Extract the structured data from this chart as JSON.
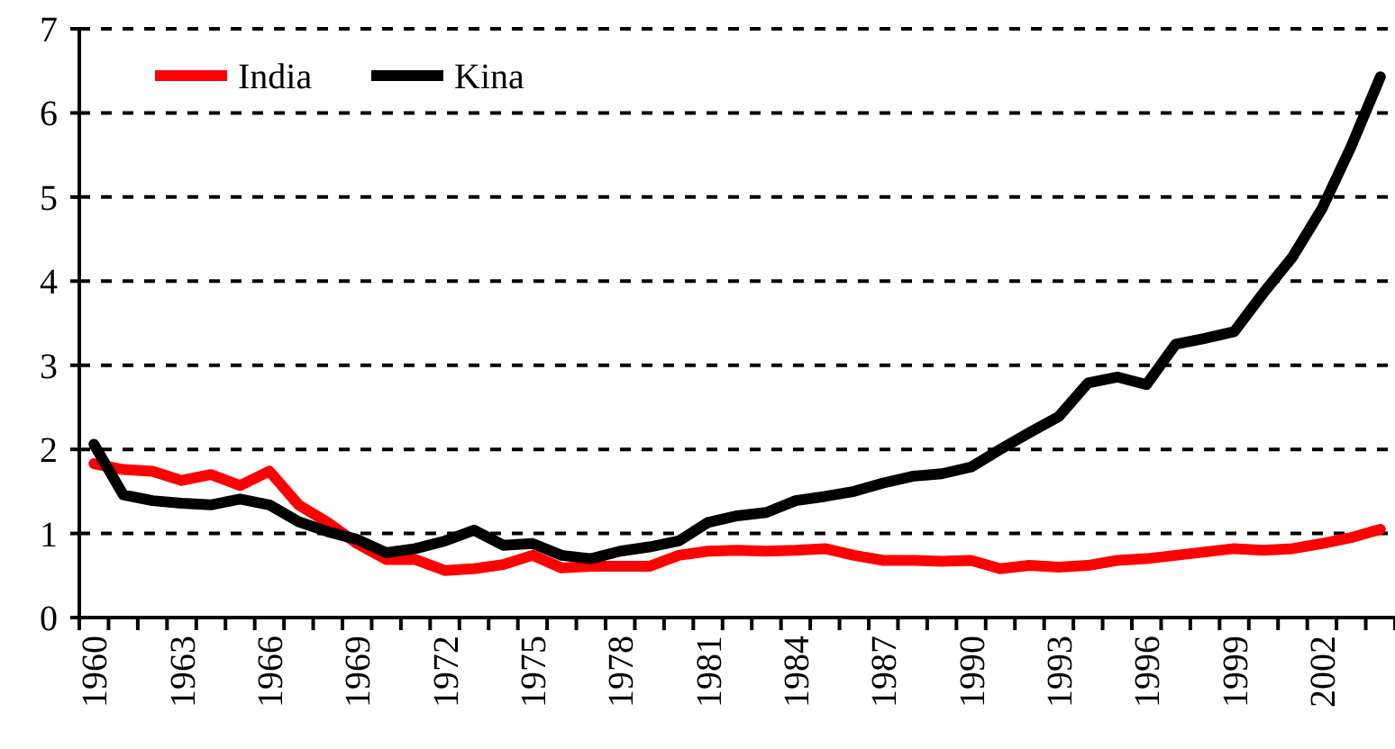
{
  "chart_data": {
    "type": "line",
    "categories": [
      "1960",
      null,
      null,
      "1963",
      null,
      null,
      "1966",
      null,
      null,
      "1969",
      null,
      null,
      "1972",
      null,
      null,
      "1975",
      null,
      null,
      "1978",
      null,
      null,
      "1981",
      null,
      null,
      "1984",
      null,
      null,
      "1987",
      null,
      null,
      "1990",
      null,
      null,
      "1993",
      null,
      null,
      "1996",
      null,
      null,
      "1999",
      null,
      null,
      "2002",
      null,
      null
    ],
    "series": [
      {
        "name": "India",
        "color": "#ff0000",
        "values": [
          1.83,
          1.76,
          1.74,
          1.63,
          1.7,
          1.57,
          1.74,
          1.34,
          1.13,
          0.88,
          0.69,
          0.69,
          0.56,
          0.58,
          0.63,
          0.74,
          0.59,
          0.61,
          0.61,
          0.61,
          0.74,
          0.79,
          0.8,
          0.79,
          0.8,
          0.82,
          0.74,
          0.68,
          0.68,
          0.67,
          0.68,
          0.58,
          0.62,
          0.6,
          0.62,
          0.68,
          0.7,
          0.74,
          0.78,
          0.82,
          0.8,
          0.82,
          0.88,
          0.95,
          1.05
        ]
      },
      {
        "name": "Kina",
        "color": "#000000",
        "values": [
          2.06,
          1.46,
          1.39,
          1.36,
          1.34,
          1.41,
          1.34,
          1.14,
          1.02,
          0.93,
          0.77,
          0.82,
          0.91,
          1.04,
          0.86,
          0.88,
          0.74,
          0.7,
          0.79,
          0.84,
          0.91,
          1.13,
          1.21,
          1.25,
          1.39,
          1.44,
          1.5,
          1.6,
          1.68,
          1.71,
          1.79,
          2.0,
          2.2,
          2.39,
          2.79,
          2.86,
          2.77,
          3.25,
          3.32,
          3.4,
          3.86,
          4.29,
          4.86,
          5.6,
          6.43
        ]
      }
    ],
    "ylim": [
      0,
      7
    ],
    "yticks": [
      0,
      1,
      2,
      3,
      4,
      5,
      6,
      7
    ],
    "grid": "y",
    "legend": "top left",
    "line_style": "solid",
    "marker": "none"
  }
}
